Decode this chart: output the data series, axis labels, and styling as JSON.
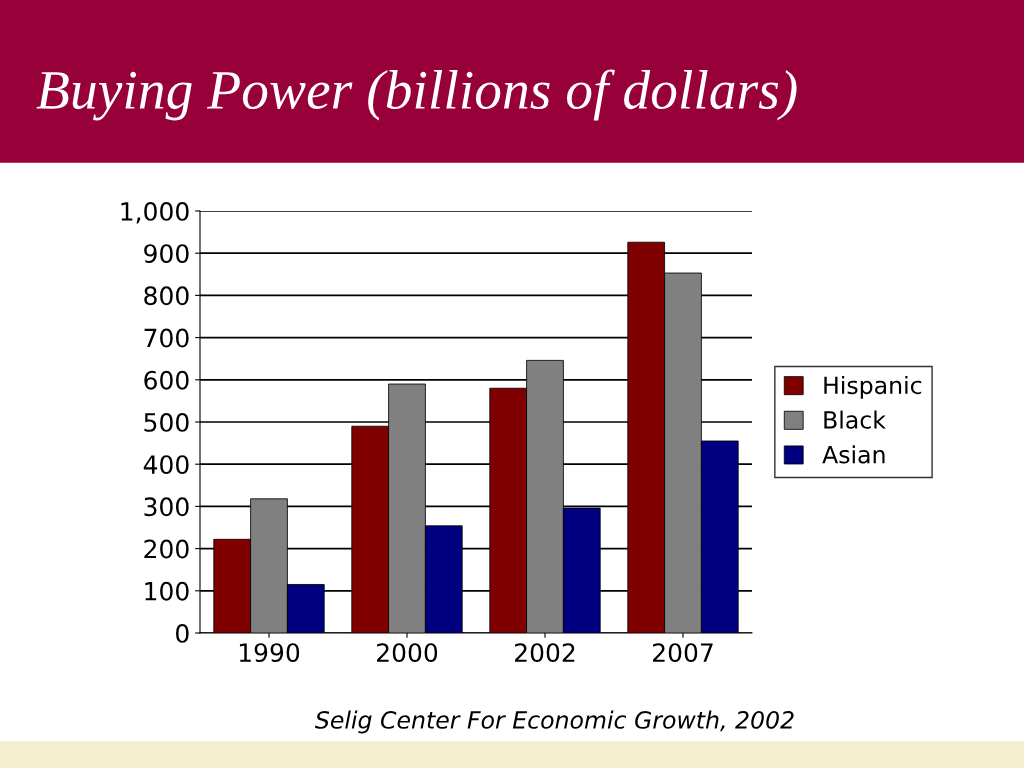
{
  "chart_data": {
    "type": "bar",
    "title": "Buying Power (billions of dollars)",
    "categories": [
      "1990",
      "2000",
      "2002",
      "2007"
    ],
    "series": [
      {
        "name": "Hispanic",
        "color": "#800000",
        "values": [
          222,
          490,
          580,
          926
        ]
      },
      {
        "name": "Black",
        "color": "#808080",
        "values": [
          318,
          590,
          646,
          853
        ]
      },
      {
        "name": "Asian",
        "color": "#000080",
        "values": [
          115,
          254,
          296,
          455
        ]
      }
    ],
    "ylim": [
      0,
      1000
    ],
    "yticks": [
      0,
      100,
      200,
      300,
      400,
      500,
      600,
      700,
      800,
      900,
      {
        "value": 1000,
        "label": "1,000"
      }
    ],
    "grid": "y",
    "legend": "right",
    "annotations": [
      "Selig Center For Economic Growth, 2002"
    ]
  }
}
